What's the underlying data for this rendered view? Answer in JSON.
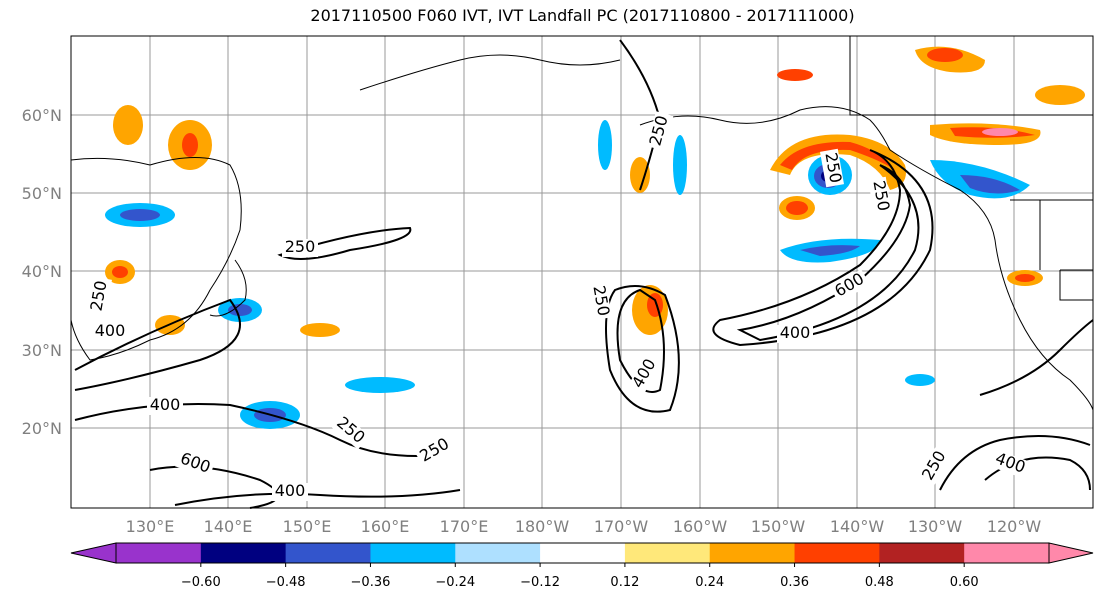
{
  "title": "2017110500 F060 IVT, IVT Landfall PC (2017110800 - 2017111000)",
  "lat_labels": [
    "60°N",
    "50°N",
    "40°N",
    "30°N",
    "20°N"
  ],
  "lon_labels": [
    "130°E",
    "140°E",
    "150°E",
    "160°E",
    "170°E",
    "180°W",
    "170°W",
    "160°W",
    "150°W",
    "140°W",
    "130°W",
    "120°W"
  ],
  "contour_labels": [
    "250",
    "250",
    "250",
    "250",
    "250",
    "250",
    "250",
    "400",
    "400",
    "400",
    "400",
    "400",
    "400",
    "600",
    "600",
    "250",
    "250"
  ],
  "colorbar": {
    "ticks": [
      "−0.60",
      "−0.48",
      "−0.36",
      "−0.24",
      "−0.12",
      "0.12",
      "0.24",
      "0.36",
      "0.48",
      "0.60"
    ],
    "colors": [
      "#9933cc",
      "#000080",
      "#3355cc",
      "#00bbff",
      "#aee0ff",
      "#ffffff",
      "#ffe87a",
      "#ffa500",
      "#ff4000",
      "#b22222",
      "#ff88aa"
    ],
    "under_color": "#9933cc",
    "over_color": "#ff88aa"
  },
  "colors": {
    "land_outline": "#000000",
    "grid": "#999999",
    "contour": "#000000"
  }
}
